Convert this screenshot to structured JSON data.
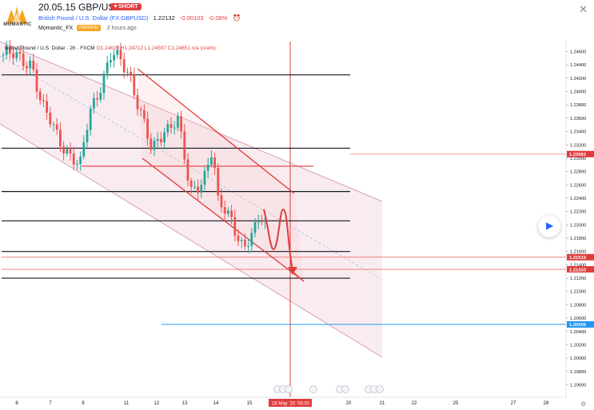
{
  "header": {
    "title": "20.05.15 GBP/USD",
    "badge": "SHORT",
    "symbol_name": "British Pound / U.S. Dollar (FX:GBPUSD)",
    "last_price": "1.22132",
    "change": "-0.00103",
    "change_pct": "-0.08%",
    "author": "Momantic_FX",
    "author_badge": "PREMIUM",
    "published": "2 hours ago",
    "logo_text": "MOMANTIC"
  },
  "legend": {
    "series": "British Pound / U.S. Dollar · 2h · FXCM",
    "ohlc": "O1.24629 H1.24712 L1.24597 C1.24651 n/a (n/a%)"
  },
  "colors": {
    "up": "#26a69a",
    "down": "#ef5350",
    "channel": "#e8b4c8",
    "accent_red": "#e03c3c",
    "blue_level": "#2196f3"
  },
  "chart_data": {
    "type": "candlestick",
    "title": "British Pound / U.S. Dollar, 2h, FXCM",
    "xlabel": "",
    "ylabel": "",
    "x_ticks": [
      "6",
      "7",
      "8",
      "11",
      "12",
      "13",
      "14",
      "15",
      "18 May '20",
      "06:00",
      "20",
      "21",
      "22",
      "25",
      "27",
      "28"
    ],
    "y_ticks": [
      "1.24600",
      "1.24400",
      "1.24200",
      "1.24000",
      "1.23800",
      "1.23600",
      "1.23400",
      "1.23200",
      "1.23000",
      "1.22800",
      "1.22600",
      "1.22400",
      "1.22200",
      "1.22000",
      "1.21800",
      "1.21600",
      "1.21400",
      "1.21200",
      "1.21000",
      "1.20800",
      "1.20600",
      "1.20400",
      "1.20200",
      "1.20000",
      "1.19800",
      "1.19600"
    ],
    "ylim": [
      1.1945,
      1.2475
    ],
    "price_labels": [
      {
        "value": 1.23062,
        "label": "1.23062",
        "color": "#e03c3c"
      },
      {
        "value": 1.21515,
        "label": "1.21515",
        "color": "#e03c3c"
      },
      {
        "value": 1.21333,
        "label": "1.21333",
        "color": "#e03c3c"
      },
      {
        "value": 1.20506,
        "label": "1.20506",
        "color": "#2196f3"
      }
    ],
    "horizontal_levels": [
      1.2425,
      1.2315,
      1.225,
      1.2206,
      1.216,
      1.212
    ],
    "cursor_date": "18 May '20",
    "cursor_time": "06:00"
  }
}
